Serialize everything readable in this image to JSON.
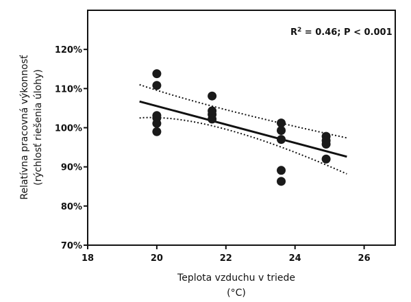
{
  "chart_data": {
    "type": "scatter",
    "title": "",
    "annotation": {
      "r2_label": "R",
      "r2_sup": "2",
      "text": " = 0.46; P < 0.001"
    },
    "xlabel": [
      "Teplota vzduchu v triede",
      "(°C)"
    ],
    "ylabel": [
      "Relatívna pracovná výkonnosť",
      "(rýchlosť riešenia úlohy)"
    ],
    "xlim": [
      18,
      26.9
    ],
    "ylim": [
      70,
      130
    ],
    "xticks": [
      18,
      20,
      22,
      24,
      26
    ],
    "xtick_labels": [
      "18",
      "20",
      "22",
      "24",
      "26"
    ],
    "yticks": [
      70,
      80,
      90,
      100,
      110,
      120
    ],
    "ytick_labels": [
      "70%",
      "80%",
      "90%",
      "100%",
      "110%",
      "120%"
    ],
    "points": [
      {
        "x": 20.0,
        "y": 113.8
      },
      {
        "x": 20.0,
        "y": 110.8
      },
      {
        "x": 20.0,
        "y": 103.1
      },
      {
        "x": 20.0,
        "y": 102.5
      },
      {
        "x": 20.0,
        "y": 101.1
      },
      {
        "x": 20.0,
        "y": 99.0
      },
      {
        "x": 21.6,
        "y": 108.1
      },
      {
        "x": 21.6,
        "y": 104.3
      },
      {
        "x": 21.6,
        "y": 103.4
      },
      {
        "x": 21.6,
        "y": 102.2
      },
      {
        "x": 23.6,
        "y": 101.2
      },
      {
        "x": 23.6,
        "y": 99.3
      },
      {
        "x": 23.6,
        "y": 97.0
      },
      {
        "x": 23.6,
        "y": 89.1
      },
      {
        "x": 23.6,
        "y": 86.3
      },
      {
        "x": 24.9,
        "y": 97.8
      },
      {
        "x": 24.9,
        "y": 96.7
      },
      {
        "x": 24.9,
        "y": 95.8
      },
      {
        "x": 24.9,
        "y": 92.0
      }
    ],
    "regression": [
      {
        "x": 19.5,
        "y": 106.7
      },
      {
        "x": 25.5,
        "y": 92.6
      }
    ],
    "ci_upper": [
      {
        "x": 19.5,
        "y": 111.0
      },
      {
        "x": 22.0,
        "y": 104.6
      },
      {
        "x": 25.5,
        "y": 97.4
      }
    ],
    "ci_lower": [
      {
        "x": 19.5,
        "y": 102.5
      },
      {
        "x": 22.0,
        "y": 99.6
      },
      {
        "x": 25.5,
        "y": 88.2
      }
    ],
    "grid": false
  }
}
